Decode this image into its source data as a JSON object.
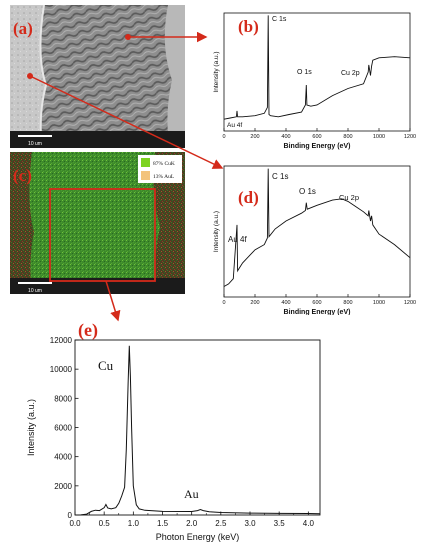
{
  "figure": {
    "panel_a": {
      "label": "(a)",
      "scale_bar": "10 um"
    },
    "panel_b": {
      "label": "(b)",
      "chart_data": {
        "type": "line",
        "xlabel": "Binding Energy (eV)",
        "ylabel": "Intensity (a.u.)",
        "xlim": [
          0,
          1200
        ],
        "x_ticks": [
          "0",
          "200",
          "400",
          "600",
          "800",
          "1000",
          "1200"
        ],
        "peak_labels": [
          "Au 4f",
          "C 1s",
          "O 1s",
          "Cu 2p"
        ],
        "x": [
          0,
          40,
          80,
          84,
          88,
          120,
          200,
          260,
          280,
          285,
          290,
          300,
          350,
          420,
          500,
          525,
          531,
          535,
          560,
          600,
          700,
          800,
          900,
          930,
          934,
          945,
          952,
          960,
          1000,
          1100,
          1200
        ],
        "y": [
          0.1,
          0.11,
          0.12,
          0.17,
          0.12,
          0.12,
          0.13,
          0.15,
          0.2,
          0.98,
          0.14,
          0.13,
          0.12,
          0.14,
          0.16,
          0.22,
          0.39,
          0.22,
          0.21,
          0.22,
          0.3,
          0.36,
          0.4,
          0.5,
          0.56,
          0.47,
          0.55,
          0.6,
          0.62,
          0.63,
          0.62
        ]
      }
    },
    "panel_c": {
      "label": "(c)",
      "scale_bar": "10 um",
      "legend": [
        {
          "text": "87% CuK",
          "color": "#7dd321"
        },
        {
          "text": "13% AuL",
          "color": "#f3c37c"
        }
      ]
    },
    "panel_d": {
      "label": "(d)",
      "chart_data": {
        "type": "line",
        "xlabel": "Binding Energy (eV)",
        "ylabel": "Intensity (a.u.)",
        "xlim": [
          0,
          1200
        ],
        "x_ticks": [
          "0",
          "200",
          "400",
          "600",
          "800",
          "1000",
          "1200"
        ],
        "peak_labels": [
          "Au 4f",
          "C 1s",
          "O 1s",
          "Cu 2p"
        ],
        "x": [
          0,
          30,
          60,
          84,
          88,
          120,
          200,
          260,
          280,
          285,
          290,
          330,
          400,
          500,
          525,
          531,
          537,
          600,
          700,
          760,
          800,
          850,
          900,
          930,
          934,
          945,
          952,
          960,
          1000,
          1100,
          1200
        ],
        "y": [
          0.08,
          0.1,
          0.14,
          0.55,
          0.2,
          0.26,
          0.36,
          0.4,
          0.45,
          0.98,
          0.46,
          0.52,
          0.58,
          0.64,
          0.66,
          0.72,
          0.67,
          0.7,
          0.74,
          0.75,
          0.73,
          0.69,
          0.65,
          0.62,
          0.66,
          0.58,
          0.62,
          0.55,
          0.48,
          0.4,
          0.3
        ]
      }
    },
    "panel_e": {
      "label": "(e)",
      "chart_data": {
        "type": "line",
        "xlabel": "Photon Energy (keV)",
        "ylabel": "Intensity (a.u.)",
        "xlim": [
          0.0,
          4.2
        ],
        "ylim": [
          0,
          12000
        ],
        "x_ticks": [
          "0.0",
          "0.5",
          "1.0",
          "1.5",
          "2.0",
          "2.5",
          "3.0",
          "3.5",
          "4.0"
        ],
        "y_ticks": [
          "0",
          "2000",
          "4000",
          "6000",
          "8000",
          "10000",
          "12000"
        ],
        "peak_labels": [
          "Cu",
          "Au"
        ],
        "x": [
          0.0,
          0.1,
          0.2,
          0.28,
          0.35,
          0.42,
          0.5,
          0.53,
          0.56,
          0.62,
          0.7,
          0.75,
          0.8,
          0.85,
          0.88,
          0.91,
          0.93,
          0.95,
          0.97,
          1.0,
          1.05,
          1.1,
          1.2,
          1.5,
          2.0,
          2.1,
          2.15,
          2.2,
          2.3,
          2.5,
          3.0,
          3.5,
          4.0,
          4.2
        ],
        "y": [
          0,
          10,
          60,
          250,
          330,
          300,
          500,
          720,
          480,
          420,
          500,
          800,
          1300,
          1900,
          4500,
          9000,
          11600,
          9500,
          6000,
          2000,
          700,
          420,
          320,
          250,
          240,
          300,
          380,
          300,
          220,
          170,
          130,
          110,
          100,
          90
        ]
      }
    }
  }
}
